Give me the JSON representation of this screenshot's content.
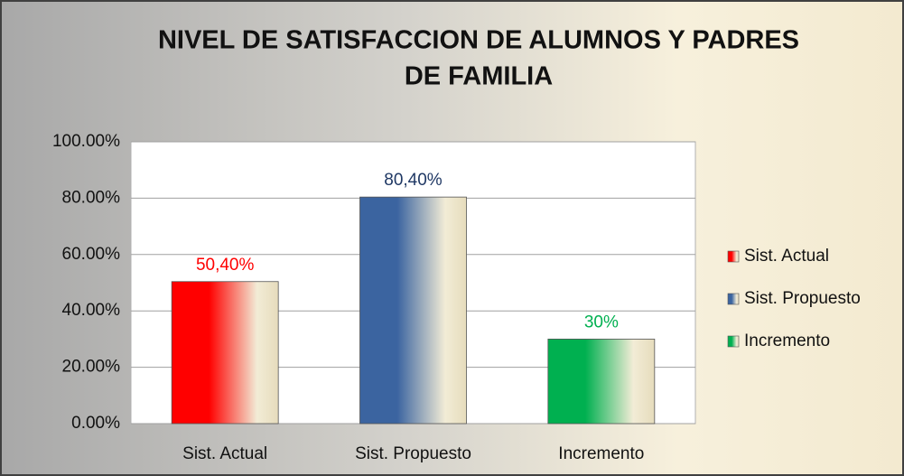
{
  "chart_data": {
    "type": "bar",
    "title": [
      "NIVEL DE SATISFACCION DE ALUMNOS Y PADRES",
      "DE FAMILIA"
    ],
    "categories": [
      "Sist. Actual",
      "Sist. Propuesto",
      "Incremento"
    ],
    "values": [
      50.4,
      80.4,
      30
    ],
    "value_labels": [
      "50,40%",
      "80,40%",
      "30%"
    ],
    "colors": [
      "#ff0000",
      "#3b64a0",
      "#00b050"
    ],
    "label_colors": [
      "#ff0000",
      "#1f3864",
      "#00b050"
    ],
    "ylim": [
      0,
      100
    ],
    "yticks": [
      {
        "value": 0,
        "label": "0.00%"
      },
      {
        "value": 20,
        "label": "20.00%"
      },
      {
        "value": 40,
        "label": "40.00%"
      },
      {
        "value": 60,
        "label": "60.00%"
      },
      {
        "value": 80,
        "label": "80.00%"
      },
      {
        "value": 100,
        "label": "100.00%"
      }
    ],
    "grid": true,
    "legend": "right"
  }
}
